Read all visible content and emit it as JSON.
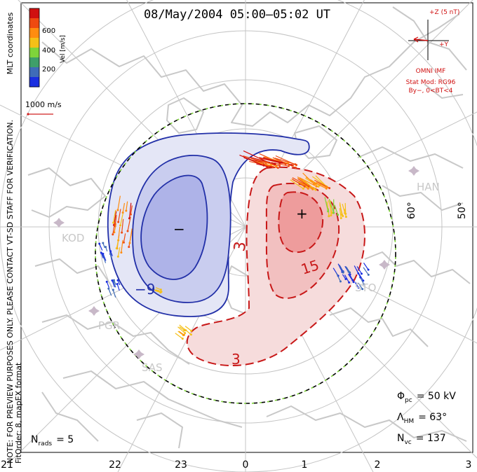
{
  "title": "08/May/2004 05:00–05:02 UT",
  "preview_note": {
    "line1": "NOTE: FOR PREVIEW PURPOSES ONLY. PLEASE CONTACT VT-SD STAFF FOR VERIFICATION.",
    "line2": "FitOrder: 8,  mapEX format"
  },
  "coords_label": "MLT coordinates",
  "velocity_scale": {
    "unit_label": "Vel [m/s]",
    "ticks": [
      "600",
      "400",
      "200"
    ],
    "colors": [
      "#d01010",
      "#ee4a10",
      "#ff8c10",
      "#f5c018",
      "#7fd43a",
      "#3f9f6a",
      "#3f6cb8",
      "#1a2fe0"
    ]
  },
  "reference_vector": {
    "label": "1000 m/s",
    "color": "#d02020"
  },
  "imf": {
    "z_label": "+Z (5 nT)",
    "y_label": "+Y",
    "source": "OMNI IMF",
    "model": "Stat Mod: RG96",
    "condition": "By−, 0<BT<4",
    "color": "#d01010"
  },
  "latitude_labels": [
    "60°",
    "50°"
  ],
  "mlt_ticks": [
    "21",
    "22",
    "23",
    "0",
    "1",
    "2",
    "3"
  ],
  "stations": [
    {
      "code": "HAN"
    },
    {
      "code": "KOD"
    },
    {
      "code": "PGR"
    },
    {
      "code": "SAS"
    },
    {
      "code": "STO"
    }
  ],
  "contour_labels": {
    "dusk_cell": "−9",
    "dawn_cell_inner": "15",
    "dawn_cell_outer": "3",
    "dawn_cell_lower": "3",
    "min_marker": "−",
    "max_marker": "+"
  },
  "stats": {
    "phi_pc_symbol": "Φ",
    "phi_pc_sub": "pc",
    "phi_pc_value": "= 50 kV",
    "lambda_hm_symbol": "Λ",
    "lambda_hm_sub": "HM",
    "lambda_hm_value": "= 63°",
    "n_vc_symbol": "N",
    "n_vc_sub": "vc",
    "n_vc_value": "= 137",
    "n_rads_symbol": "N",
    "n_rads_sub": "rads",
    "n_rads_value": "= 5"
  },
  "colors": {
    "negative_contour": "#2230a8",
    "negative_fill_outer": "#e4e6f6",
    "negative_fill_mid": "#c9cdef",
    "negative_fill_inner": "#aeb3e8",
    "positive_contour": "#c81818",
    "positive_fill_outer": "#f6dcdc",
    "positive_fill_mid": "#f2c0c0",
    "positive_fill_inner": "#ee9c9c",
    "coastline": "#c8c8c8",
    "grid": "#c4c4c4",
    "boundary_dash": "#7fd43a"
  }
}
